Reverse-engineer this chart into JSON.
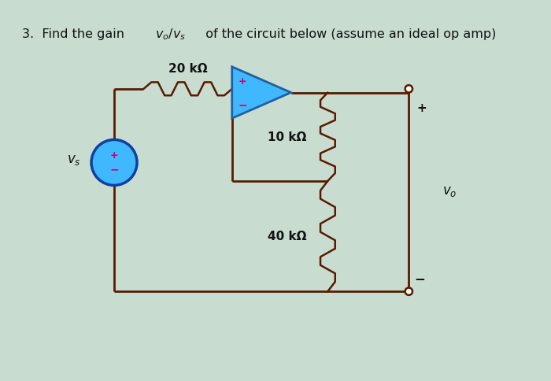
{
  "bg_color": "#c8ddd0",
  "wire_color": "#5a1a00",
  "resistor_color": "#5a1a00",
  "opamp_fill": "#40b8ff",
  "opamp_edge": "#2060a0",
  "source_fill": "#40b8ff",
  "source_edge": "#1040a0",
  "r1_label": "20 kΩ",
  "r2_label": "10 kΩ",
  "r3_label": "40 kΩ",
  "vs_label": "v_s",
  "vo_label": "v_o",
  "title1": "3.  Find the gain ",
  "title2": " of the circuit below (assume an ideal op amp)"
}
